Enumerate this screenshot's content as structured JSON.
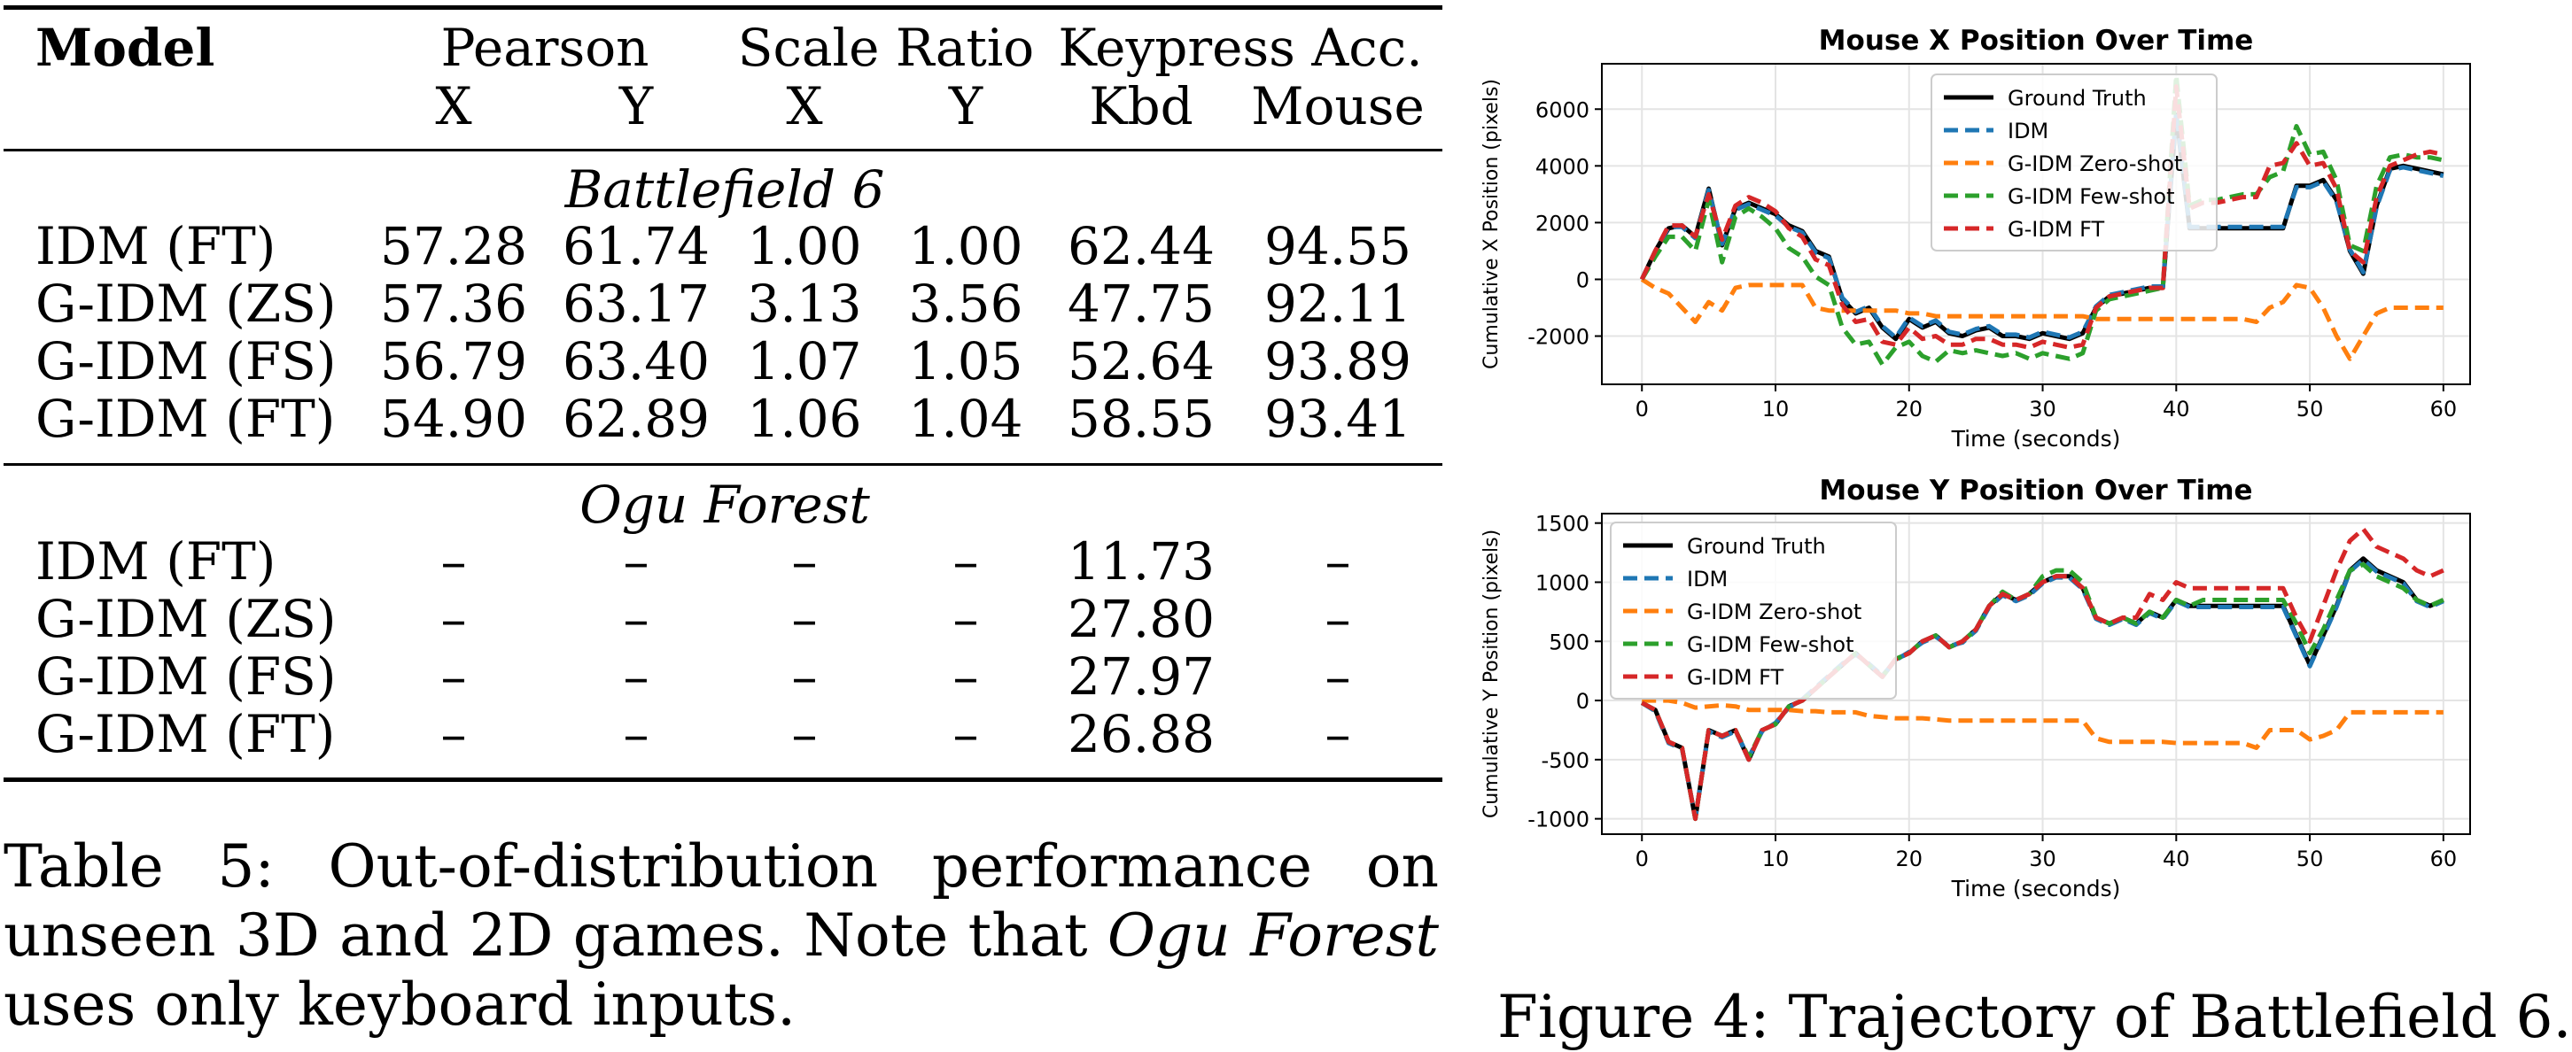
{
  "table": {
    "header": {
      "model": "Model",
      "groups": [
        "Pearson",
        "Scale Ratio",
        "Keypress Acc."
      ],
      "subcols": [
        "X",
        "Y",
        "X",
        "Y",
        "Kbd",
        "Mouse"
      ]
    },
    "sections": [
      {
        "title": "Battlefield 6",
        "rows": [
          {
            "model": "IDM (FT)",
            "values": [
              "57.28",
              "61.74",
              "1.00",
              "1.00",
              "62.44",
              "94.55"
            ]
          },
          {
            "model": "G-IDM (ZS)",
            "values": [
              "57.36",
              "63.17",
              "3.13",
              "3.56",
              "47.75",
              "92.11"
            ]
          },
          {
            "model": "G-IDM (FS)",
            "values": [
              "56.79",
              "63.40",
              "1.07",
              "1.05",
              "52.64",
              "93.89"
            ]
          },
          {
            "model": "G-IDM (FT)",
            "values": [
              "54.90",
              "62.89",
              "1.06",
              "1.04",
              "58.55",
              "93.41"
            ]
          }
        ]
      },
      {
        "title": "Ogu Forest",
        "rows": [
          {
            "model": "IDM (FT)",
            "values": [
              "–",
              "–",
              "–",
              "–",
              "11.73",
              "–"
            ]
          },
          {
            "model": "G-IDM (ZS)",
            "values": [
              "–",
              "–",
              "–",
              "–",
              "27.80",
              "–"
            ]
          },
          {
            "model": "G-IDM (FS)",
            "values": [
              "–",
              "–",
              "–",
              "–",
              "27.97",
              "–"
            ]
          },
          {
            "model": "G-IDM (FT)",
            "values": [
              "–",
              "–",
              "–",
              "–",
              "26.88",
              "–"
            ]
          }
        ]
      }
    ],
    "caption": {
      "prefix": "Table 5: Out-of-distribution performance on unseen 3D and 2D games. Note that ",
      "emph": "Ogu Forest",
      "suffix": " uses only keyboard inputs."
    }
  },
  "figure": {
    "caption": "Figure 4: Trajectory of Battlefield 6."
  },
  "chart_data": [
    {
      "type": "line",
      "title": "Mouse X Position Over Time",
      "xlabel": "Time (seconds)",
      "ylabel": "Cumulative X Position (pixels)",
      "xlim": [
        -3,
        62
      ],
      "ylim": [
        -3700,
        7600
      ],
      "xticks": [
        0,
        10,
        20,
        30,
        40,
        50,
        60
      ],
      "yticks": [
        -2000,
        0,
        2000,
        4000,
        6000
      ],
      "grid": true,
      "legend": "top-center",
      "x": [
        0,
        1,
        2,
        3,
        4,
        5,
        6,
        7,
        8,
        9,
        10,
        11,
        12,
        13,
        14,
        15,
        16,
        17,
        18,
        19,
        20,
        21,
        22,
        23,
        24,
        25,
        26,
        27,
        28,
        29,
        30,
        31,
        32,
        33,
        34,
        35,
        36,
        37,
        38,
        39,
        40,
        41,
        42,
        43,
        44,
        45,
        46,
        47,
        48,
        49,
        50,
        51,
        52,
        53,
        54,
        55,
        56,
        57,
        58,
        59,
        60
      ],
      "series": [
        {
          "name": "Ground Truth",
          "color": "#000000",
          "dash": "solid",
          "values": [
            0,
            1000,
            1800,
            1900,
            1500,
            3200,
            1200,
            2500,
            2700,
            2500,
            2300,
            1900,
            1700,
            1000,
            800,
            -700,
            -1200,
            -1000,
            -1700,
            -2100,
            -1400,
            -1700,
            -1500,
            -1900,
            -2000,
            -1800,
            -1700,
            -2000,
            -2000,
            -2100,
            -1900,
            -2000,
            -2100,
            -1900,
            -1000,
            -600,
            -500,
            -400,
            -300,
            -300,
            5800,
            1800,
            1800,
            1800,
            1800,
            1800,
            1800,
            1800,
            1800,
            3300,
            3300,
            3500,
            2800,
            1000,
            200,
            2600,
            3900,
            4000,
            3900,
            3800,
            3700
          ]
        },
        {
          "name": "IDM",
          "color": "#1f77b4",
          "dash": "dashed",
          "values": [
            0,
            950,
            1850,
            1850,
            1450,
            3150,
            1250,
            2450,
            2650,
            2450,
            2250,
            1850,
            1650,
            950,
            750,
            -650,
            -1150,
            -950,
            -1650,
            -2050,
            -1350,
            -1650,
            -1450,
            -1850,
            -1950,
            -1750,
            -1650,
            -1950,
            -1950,
            -2050,
            -1850,
            -1950,
            -2050,
            -1850,
            -950,
            -550,
            -450,
            -350,
            -250,
            -250,
            5900,
            1850,
            1850,
            1850,
            1850,
            1850,
            1850,
            1850,
            1850,
            3250,
            3250,
            3450,
            2750,
            1050,
            250,
            2550,
            3850,
            3950,
            3850,
            3750,
            3650
          ]
        },
        {
          "name": "G-IDM Zero-shot",
          "color": "#ff7f0e",
          "dash": "dashed",
          "values": [
            0,
            -300,
            -500,
            -1000,
            -1500,
            -800,
            -1100,
            -300,
            -200,
            -200,
            -200,
            -200,
            -200,
            -1000,
            -1100,
            -1100,
            -1100,
            -1100,
            -1100,
            -1100,
            -1200,
            -1200,
            -1300,
            -1300,
            -1300,
            -1300,
            -1300,
            -1300,
            -1300,
            -1300,
            -1300,
            -1300,
            -1300,
            -1300,
            -1400,
            -1400,
            -1400,
            -1400,
            -1400,
            -1400,
            -1400,
            -1400,
            -1400,
            -1400,
            -1400,
            -1400,
            -1500,
            -1000,
            -800,
            -200,
            -300,
            -1000,
            -2000,
            -2800,
            -2000,
            -1200,
            -1000,
            -1000,
            -1000,
            -1000,
            -1000
          ]
        },
        {
          "name": "G-IDM Few-shot",
          "color": "#2ca02c",
          "dash": "dashed",
          "values": [
            0,
            800,
            1500,
            1500,
            1000,
            2800,
            600,
            2200,
            2500,
            2200,
            1800,
            1100,
            800,
            100,
            -200,
            -1700,
            -2300,
            -2200,
            -3000,
            -2400,
            -2200,
            -2700,
            -2900,
            -2500,
            -2600,
            -2500,
            -2600,
            -2700,
            -2600,
            -2800,
            -2600,
            -2700,
            -2800,
            -2600,
            -1100,
            -700,
            -600,
            -500,
            -400,
            -300,
            7200,
            2600,
            2800,
            2800,
            2900,
            3000,
            3000,
            3600,
            3800,
            5400,
            4400,
            4500,
            3500,
            1200,
            1000,
            3300,
            4300,
            4400,
            4300,
            4300,
            4200
          ]
        },
        {
          "name": "G-IDM FT",
          "color": "#d62728",
          "dash": "dashed",
          "values": [
            0,
            1000,
            1900,
            1900,
            1500,
            3000,
            1400,
            2600,
            2900,
            2700,
            2400,
            1800,
            1500,
            700,
            500,
            -900,
            -1500,
            -1400,
            -2200,
            -2300,
            -1700,
            -2100,
            -2000,
            -2300,
            -2300,
            -2100,
            -2100,
            -2300,
            -2300,
            -2400,
            -2200,
            -2300,
            -2400,
            -2300,
            -1000,
            -600,
            -500,
            -400,
            -300,
            -300,
            6800,
            2500,
            2700,
            2700,
            2800,
            2900,
            2900,
            4000,
            4100,
            4800,
            4000,
            4100,
            3200,
            1000,
            600,
            2900,
            4000,
            4200,
            4400,
            4500,
            4400
          ]
        }
      ]
    },
    {
      "type": "line",
      "title": "Mouse Y Position Over Time",
      "xlabel": "Time (seconds)",
      "ylabel": "Cumulative Y Position (pixels)",
      "xlim": [
        -3,
        62
      ],
      "ylim": [
        -1130,
        1580
      ],
      "xticks": [
        0,
        10,
        20,
        30,
        40,
        50,
        60
      ],
      "yticks": [
        -1000,
        -500,
        0,
        500,
        1000,
        1500
      ],
      "grid": true,
      "legend": "top-left",
      "x": [
        0,
        1,
        2,
        3,
        4,
        5,
        6,
        7,
        8,
        9,
        10,
        11,
        12,
        13,
        14,
        15,
        16,
        17,
        18,
        19,
        20,
        21,
        22,
        23,
        24,
        25,
        26,
        27,
        28,
        29,
        30,
        31,
        32,
        33,
        34,
        35,
        36,
        37,
        38,
        39,
        40,
        41,
        42,
        43,
        44,
        45,
        46,
        47,
        48,
        49,
        50,
        51,
        52,
        53,
        54,
        55,
        56,
        57,
        58,
        59,
        60
      ],
      "series": [
        {
          "name": "Ground Truth",
          "color": "#000000",
          "dash": "solid",
          "values": [
            -20,
            -80,
            -350,
            -400,
            -1000,
            -250,
            -300,
            -250,
            -500,
            -250,
            -200,
            -50,
            0,
            100,
            200,
            300,
            400,
            300,
            200,
            350,
            400,
            500,
            550,
            450,
            500,
            600,
            800,
            900,
            850,
            900,
            1000,
            1050,
            1050,
            950,
            700,
            650,
            700,
            650,
            750,
            700,
            850,
            800,
            800,
            800,
            800,
            800,
            800,
            800,
            800,
            550,
            300,
            550,
            800,
            1100,
            1200,
            1100,
            1050,
            1000,
            850,
            800,
            850
          ]
        },
        {
          "name": "IDM",
          "color": "#1f77b4",
          "dash": "dashed",
          "values": [
            -20,
            -90,
            -360,
            -410,
            -990,
            -260,
            -310,
            -260,
            -480,
            -260,
            -190,
            -60,
            10,
            110,
            210,
            310,
            390,
            310,
            210,
            340,
            410,
            490,
            540,
            460,
            490,
            590,
            790,
            890,
            840,
            890,
            990,
            1040,
            1040,
            940,
            690,
            640,
            690,
            640,
            740,
            690,
            840,
            790,
            790,
            790,
            790,
            790,
            790,
            790,
            790,
            540,
            290,
            540,
            790,
            1090,
            1190,
            1090,
            1040,
            990,
            840,
            790,
            840
          ]
        },
        {
          "name": "G-IDM Zero-shot",
          "color": "#ff7f0e",
          "dash": "dashed",
          "values": [
            0,
            0,
            0,
            -20,
            -60,
            -50,
            -40,
            -50,
            -80,
            -80,
            -80,
            -80,
            -90,
            -90,
            -100,
            -100,
            -100,
            -130,
            -140,
            -150,
            -150,
            -150,
            -160,
            -170,
            -170,
            -170,
            -170,
            -170,
            -170,
            -170,
            -170,
            -170,
            -170,
            -170,
            -320,
            -350,
            -350,
            -350,
            -350,
            -350,
            -360,
            -360,
            -360,
            -360,
            -360,
            -360,
            -400,
            -250,
            -250,
            -250,
            -330,
            -300,
            -250,
            -100,
            -100,
            -100,
            -100,
            -100,
            -100,
            -100,
            -100
          ]
        },
        {
          "name": "G-IDM Few-shot",
          "color": "#2ca02c",
          "dash": "dashed",
          "values": [
            -20,
            -80,
            -350,
            -400,
            -1000,
            -250,
            -300,
            -250,
            -480,
            -250,
            -200,
            -50,
            0,
            100,
            200,
            300,
            400,
            300,
            200,
            350,
            400,
            500,
            550,
            450,
            500,
            600,
            800,
            920,
            850,
            900,
            1050,
            1100,
            1100,
            1000,
            700,
            650,
            700,
            650,
            750,
            700,
            850,
            800,
            850,
            850,
            850,
            850,
            850,
            850,
            850,
            650,
            400,
            600,
            850,
            1100,
            1150,
            1050,
            1000,
            950,
            850,
            800,
            850
          ]
        },
        {
          "name": "G-IDM FT",
          "color": "#d62728",
          "dash": "dashed",
          "values": [
            -20,
            -80,
            -350,
            -400,
            -1000,
            -250,
            -300,
            -250,
            -500,
            -250,
            -200,
            -50,
            0,
            100,
            200,
            300,
            400,
            300,
            200,
            350,
            400,
            500,
            550,
            450,
            500,
            600,
            800,
            900,
            850,
            900,
            1000,
            1050,
            1050,
            950,
            700,
            650,
            700,
            700,
            900,
            850,
            1000,
            950,
            950,
            950,
            950,
            950,
            950,
            950,
            950,
            700,
            500,
            800,
            1100,
            1350,
            1450,
            1300,
            1250,
            1200,
            1100,
            1050,
            1100
          ]
        }
      ]
    }
  ]
}
